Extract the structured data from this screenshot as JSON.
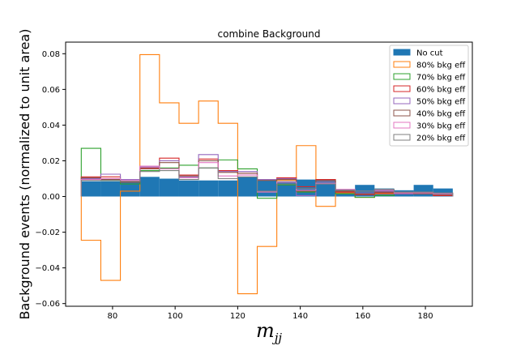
{
  "chart_data": {
    "type": "bar",
    "title": "combine Background",
    "xlabel": "m_jj",
    "ylabel": "Background events (normalized to unit area)",
    "xlim": [
      65,
      195
    ],
    "ylim": [
      -0.0615,
      0.0865
    ],
    "x_ticks": [
      80,
      100,
      120,
      140,
      160,
      180
    ],
    "x_tick_labels": [
      "80",
      "100",
      "120",
      "140",
      "160",
      "180"
    ],
    "y_ticks": [
      -0.06,
      -0.04,
      -0.02,
      0.0,
      0.02,
      0.04,
      0.06,
      0.08
    ],
    "y_tick_labels": [
      "−0.06",
      "−0.04",
      "−0.02",
      "0.00",
      "0.02",
      "0.04",
      "0.06",
      "0.08"
    ],
    "bin_edges": [
      70,
      76.25,
      82.5,
      88.75,
      95,
      101.25,
      107.5,
      113.75,
      120,
      126.25,
      132.5,
      138.75,
      145,
      151.25,
      157.5,
      163.75,
      170,
      176.25,
      182.5,
      188.75
    ],
    "legend_position": "top-right",
    "grid": false,
    "series": [
      {
        "name": "No cut",
        "style": "filled",
        "color": "#1f77b4",
        "values": [
          0.0085,
          0.0085,
          0.0085,
          0.011,
          0.01,
          0.009,
          0.009,
          0.009,
          0.011,
          0.009,
          0.0085,
          0.0095,
          0.0095,
          0.004,
          0.0065,
          0.0045,
          0.0035,
          0.0065,
          0.0045
        ]
      },
      {
        "name": "80% bkg eff",
        "style": "step",
        "color": "#ff7f0e",
        "values": [
          -0.0245,
          -0.047,
          0.003,
          0.0795,
          0.0525,
          0.041,
          0.0535,
          0.041,
          -0.0545,
          -0.028,
          0.009,
          0.0285,
          -0.0055,
          0.002,
          -0.0005,
          0.0015,
          0.002,
          0.0025,
          0.0005
        ]
      },
      {
        "name": "70% bkg eff",
        "style": "step",
        "color": "#2ca02c",
        "values": [
          0.027,
          0.009,
          0.007,
          0.0145,
          0.016,
          0.0175,
          0.016,
          0.0205,
          0.0155,
          -0.001,
          0.0065,
          0.0025,
          0.0085,
          0.0015,
          -0.0005,
          0.0005,
          0.0015,
          0.002,
          0.001
        ]
      },
      {
        "name": "60% bkg eff",
        "style": "step",
        "color": "#d62728",
        "values": [
          0.011,
          0.011,
          0.0085,
          0.016,
          0.0215,
          0.012,
          0.021,
          0.0145,
          0.013,
          0.0095,
          0.0105,
          0.0055,
          0.0095,
          0.0025,
          0.001,
          0.002,
          0.0015,
          0.002,
          0.0005
        ]
      },
      {
        "name": "50% bkg eff",
        "style": "step",
        "color": "#9467bd",
        "values": [
          0.01,
          0.0125,
          0.0095,
          0.0165,
          0.02,
          0.011,
          0.0235,
          0.014,
          0.014,
          0.0095,
          0.01,
          0.0005,
          0.0085,
          0.003,
          0.002,
          0.003,
          0.0015,
          0.0015,
          0.001
        ]
      },
      {
        "name": "40% bkg eff",
        "style": "step",
        "color": "#8c564b",
        "values": [
          0.0105,
          0.0095,
          0.008,
          0.0155,
          0.019,
          0.0115,
          0.02,
          0.0135,
          0.013,
          0.009,
          0.0095,
          0.003,
          0.009,
          0.003,
          0.0015,
          0.0025,
          0.002,
          0.0015,
          0.001
        ]
      },
      {
        "name": "30% bkg eff",
        "style": "step",
        "color": "#e377c2",
        "values": [
          0.0095,
          0.01,
          0.009,
          0.017,
          0.0155,
          0.0105,
          0.019,
          0.0115,
          0.012,
          0.0025,
          0.008,
          0.0035,
          0.0075,
          0.004,
          0.003,
          0.0035,
          0.002,
          0.002,
          0.0015
        ]
      },
      {
        "name": "20% bkg eff",
        "style": "step",
        "color": "#7f7f7f",
        "values": [
          0.009,
          0.009,
          0.0085,
          0.014,
          0.0145,
          0.0095,
          0.016,
          0.01,
          0.011,
          0.003,
          0.007,
          0.0045,
          0.007,
          0.0035,
          0.003,
          0.004,
          0.0025,
          0.0025,
          0.002
        ]
      }
    ]
  }
}
